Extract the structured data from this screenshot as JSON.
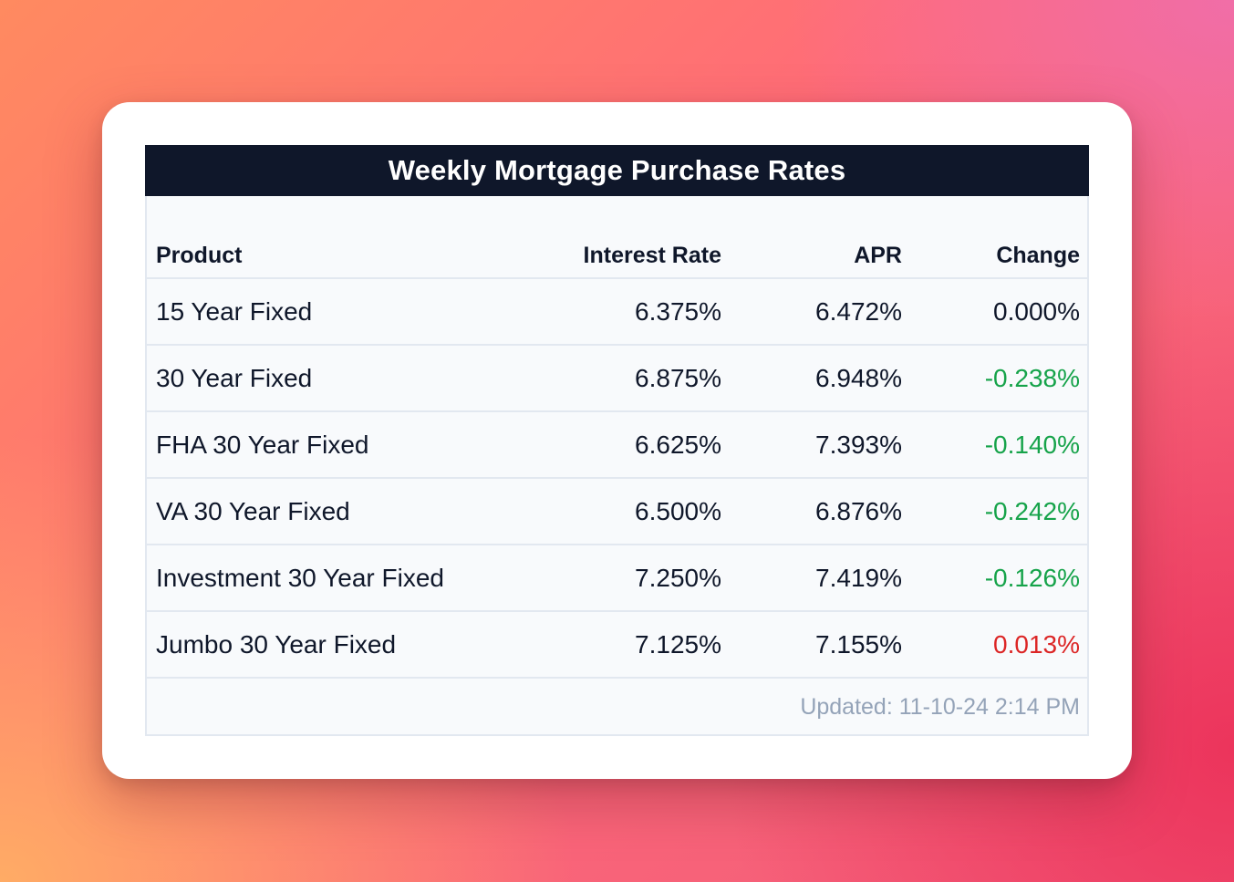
{
  "title": "Weekly Mortgage Purchase Rates",
  "columns": [
    "Product",
    "Interest Rate",
    "APR",
    "Change"
  ],
  "rows": [
    {
      "product": "15 Year Fixed",
      "interest_rate": "6.375%",
      "apr": "6.472%",
      "change": "0.000%",
      "change_tone": "neutral"
    },
    {
      "product": "30 Year Fixed",
      "interest_rate": "6.875%",
      "apr": "6.948%",
      "change": "-0.238%",
      "change_tone": "neg"
    },
    {
      "product": "FHA 30 Year Fixed",
      "interest_rate": "6.625%",
      "apr": "7.393%",
      "change": "-0.140%",
      "change_tone": "neg"
    },
    {
      "product": "VA 30 Year Fixed",
      "interest_rate": "6.500%",
      "apr": "6.876%",
      "change": "-0.242%",
      "change_tone": "neg"
    },
    {
      "product": "Investment 30 Year Fixed",
      "interest_rate": "7.250%",
      "apr": "7.419%",
      "change": "-0.126%",
      "change_tone": "neg"
    },
    {
      "product": "Jumbo 30 Year Fixed",
      "interest_rate": "7.125%",
      "apr": "7.155%",
      "change": "0.013%",
      "change_tone": "pos"
    }
  ],
  "updated": "Updated: 11-10-24 2:14 PM",
  "colors": {
    "header_bg": "#0f172a",
    "negative_change": "#16a34a",
    "positive_change": "#dc2626",
    "muted_text": "#94a3b8"
  }
}
